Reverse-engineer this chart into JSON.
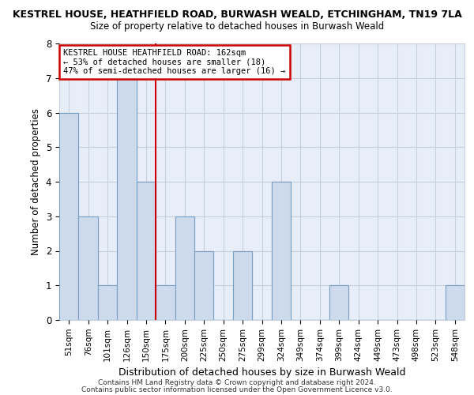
{
  "title_line1": "KESTREL HOUSE, HEATHFIELD ROAD, BURWASH WEALD, ETCHINGHAM, TN19 7LA",
  "title_line2": "Size of property relative to detached houses in Burwash Weald",
  "xlabel": "Distribution of detached houses by size in Burwash Weald",
  "ylabel": "Number of detached properties",
  "footer_line1": "Contains HM Land Registry data © Crown copyright and database right 2024.",
  "footer_line2": "Contains public sector information licensed under the Open Government Licence v3.0.",
  "categories": [
    "51sqm",
    "76sqm",
    "101sqm",
    "126sqm",
    "150sqm",
    "175sqm",
    "200sqm",
    "225sqm",
    "250sqm",
    "275sqm",
    "299sqm",
    "324sqm",
    "349sqm",
    "374sqm",
    "399sqm",
    "424sqm",
    "449sqm",
    "473sqm",
    "498sqm",
    "523sqm",
    "548sqm"
  ],
  "values": [
    6,
    3,
    1,
    7,
    4,
    1,
    3,
    2,
    0,
    2,
    0,
    4,
    0,
    0,
    1,
    0,
    0,
    0,
    0,
    0,
    1
  ],
  "bar_color": "#ccdaec",
  "bar_edge_color": "#7aa0c4",
  "reference_line_color": "#cc0000",
  "ref_line_x": 4.5,
  "annotation_line1": "KESTREL HOUSE HEATHFIELD ROAD: 162sqm",
  "annotation_line2": "← 53% of detached houses are smaller (18)",
  "annotation_line3": "47% of semi-detached houses are larger (16) →",
  "annotation_box_color": "#cc0000",
  "ylim": [
    0,
    8
  ],
  "yticks": [
    0,
    1,
    2,
    3,
    4,
    5,
    6,
    7,
    8
  ],
  "grid_color": "#c8d0dc",
  "background_color": "#e8eef8",
  "bar_width": 1.0
}
